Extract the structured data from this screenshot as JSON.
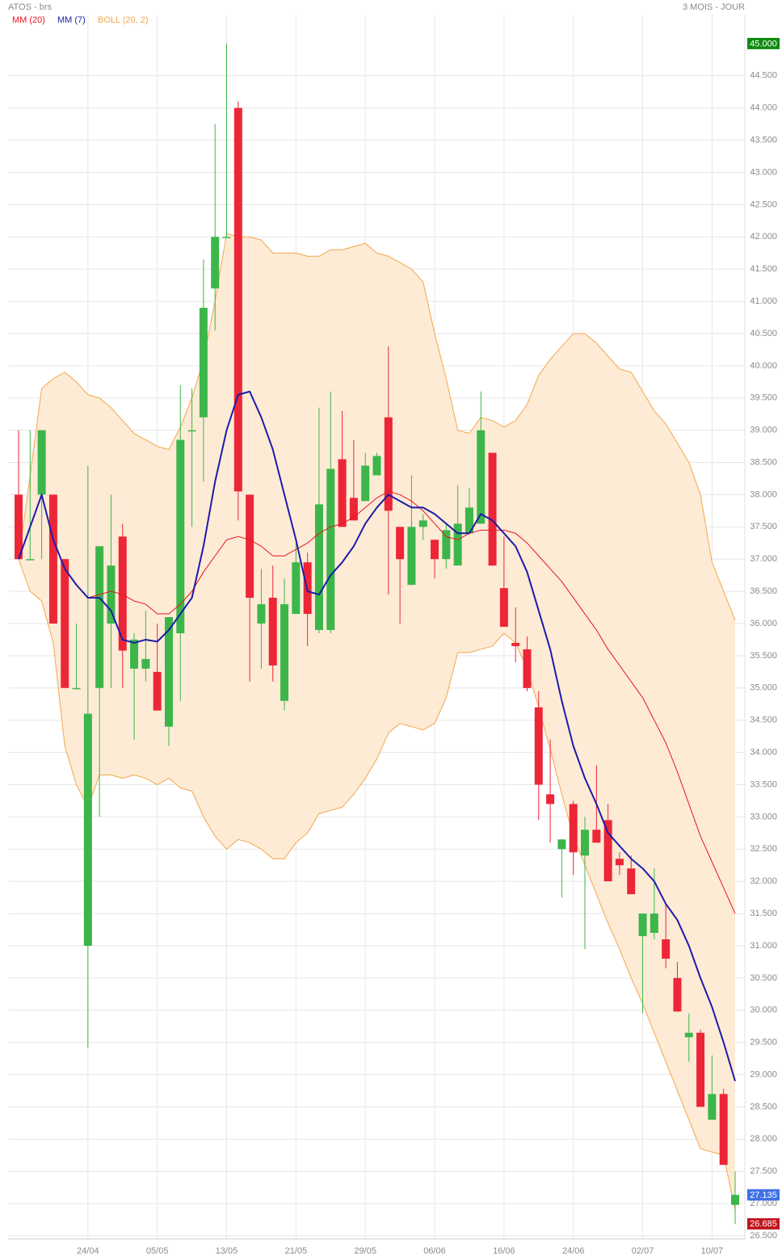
{
  "chart_data": {
    "type": "candlestick",
    "title": "ATOS - brs",
    "subtitle": "3 MOIS - JOUR",
    "categories": [
      null,
      null,
      null,
      null,
      null,
      null,
      "24/04",
      null,
      null,
      null,
      null,
      null,
      "05/05",
      null,
      null,
      null,
      null,
      null,
      "13/05",
      null,
      null,
      null,
      null,
      null,
      "21/05",
      null,
      null,
      null,
      null,
      null,
      "29/05",
      null,
      null,
      null,
      null,
      null,
      "06/06",
      null,
      null,
      null,
      null,
      null,
      "16/06",
      null,
      null,
      null,
      null,
      null,
      "24/06",
      null,
      null,
      null,
      null,
      null,
      "02/07",
      null,
      null,
      null,
      null,
      null,
      "10/07",
      null,
      null
    ],
    "open": [
      38.0,
      37.0,
      38.0,
      38.0,
      37.0,
      35.0,
      31.0,
      35.0,
      36.0,
      37.35,
      35.3,
      35.3,
      35.25,
      34.4,
      35.85,
      39.0,
      39.2,
      41.2,
      42.0,
      44.0,
      38.0,
      36.0,
      36.4,
      34.8,
      36.15,
      36.95,
      35.9,
      35.9,
      38.55,
      37.95,
      37.9,
      38.3,
      39.2,
      37.5,
      36.6,
      37.5,
      37.3,
      37.0,
      36.9,
      37.4,
      37.55,
      38.65,
      36.55,
      35.7,
      35.6,
      34.7,
      33.35,
      32.5,
      33.2,
      32.4,
      32.8,
      32.95,
      32.35,
      32.2,
      31.15,
      31.2,
      31.1,
      30.5,
      29.58,
      29.65,
      28.3,
      28.7,
      26.98
    ],
    "high": [
      39.0,
      39.0,
      39.0,
      38.0,
      37.0,
      36.0,
      38.45,
      37.2,
      38.0,
      37.55,
      35.85,
      36.2,
      36.0,
      36.1,
      39.7,
      39.65,
      41.65,
      43.75,
      45.0,
      44.1,
      38.0,
      36.85,
      36.9,
      36.7,
      37.25,
      37.1,
      39.35,
      39.6,
      39.3,
      38.85,
      38.65,
      38.65,
      40.3,
      37.5,
      38.3,
      37.7,
      37.3,
      37.55,
      38.15,
      38.1,
      39.6,
      38.65,
      37.35,
      36.25,
      35.8,
      34.95,
      34.2,
      32.65,
      33.25,
      33.0,
      33.8,
      33.2,
      32.45,
      32.4,
      31.5,
      32.2,
      31.65,
      30.75,
      29.95,
      29.7,
      29.3,
      28.78,
      27.5
    ],
    "low": [
      37.0,
      37.0,
      37.0,
      36.0,
      35.0,
      35.0,
      29.42,
      33.0,
      35.0,
      35.0,
      34.2,
      35.1,
      34.65,
      34.1,
      34.8,
      37.5,
      38.2,
      40.55,
      42.0,
      37.6,
      35.1,
      35.3,
      35.1,
      34.65,
      36.15,
      35.65,
      35.85,
      35.85,
      37.5,
      37.6,
      37.9,
      38.3,
      36.45,
      36.0,
      36.6,
      37.3,
      36.7,
      36.85,
      36.9,
      37.4,
      37.55,
      36.9,
      35.95,
      35.4,
      34.95,
      32.95,
      32.6,
      31.75,
      32.1,
      30.95,
      32.6,
      32.0,
      32.1,
      31.8,
      29.95,
      31.1,
      30.65,
      29.98,
      29.2,
      28.5,
      28.3,
      27.6,
      26.685
    ],
    "close": [
      37.0,
      37.0,
      39.0,
      36.0,
      35.0,
      35.0,
      34.6,
      37.2,
      36.9,
      35.58,
      35.75,
      35.45,
      34.65,
      36.1,
      38.85,
      39.0,
      40.9,
      42.0,
      42.0,
      38.05,
      36.4,
      36.3,
      35.35,
      36.3,
      36.95,
      36.15,
      37.85,
      38.4,
      37.5,
      37.6,
      38.45,
      38.6,
      37.75,
      37.0,
      37.5,
      37.6,
      37.0,
      37.45,
      37.55,
      37.8,
      39.0,
      36.9,
      35.95,
      35.65,
      35.0,
      33.5,
      33.2,
      32.65,
      32.45,
      32.8,
      32.6,
      32.0,
      32.25,
      31.8,
      31.5,
      31.5,
      30.8,
      29.98,
      29.65,
      28.5,
      28.7,
      27.6,
      27.135
    ],
    "up_color": "#3cb64a",
    "down_color": "#ec2637",
    "overlays": [
      {
        "name": "MM (20)",
        "color": "#e8141e",
        "width": 1,
        "values": [
          null,
          null,
          null,
          null,
          null,
          null,
          36.4,
          36.45,
          36.5,
          36.45,
          36.35,
          36.3,
          36.15,
          36.15,
          36.3,
          36.5,
          36.8,
          37.05,
          37.3,
          37.35,
          37.3,
          37.2,
          37.05,
          37.05,
          37.15,
          37.25,
          37.4,
          37.5,
          37.55,
          37.65,
          37.8,
          37.95,
          38.05,
          38.0,
          37.9,
          37.75,
          37.55,
          37.35,
          37.3,
          37.4,
          37.45,
          37.45,
          37.45,
          37.4,
          37.25,
          37.05,
          36.85,
          36.65,
          36.4,
          36.15,
          35.9,
          35.6,
          35.35,
          35.1,
          34.85,
          34.5,
          34.15,
          33.7,
          33.2,
          32.7,
          32.3,
          31.9,
          31.5
        ]
      },
      {
        "name": "MM (7)",
        "color": "#1c1ca8",
        "width": 2,
        "values": [
          37.0,
          37.5,
          38.0,
          37.3,
          36.85,
          36.6,
          36.4,
          36.4,
          36.2,
          35.75,
          35.7,
          35.75,
          35.72,
          35.9,
          36.15,
          36.4,
          37.2,
          38.2,
          39.0,
          39.55,
          39.6,
          39.2,
          38.7,
          38.0,
          37.3,
          36.5,
          36.45,
          36.75,
          36.95,
          37.2,
          37.55,
          37.8,
          38.0,
          37.9,
          37.8,
          37.8,
          37.7,
          37.55,
          37.4,
          37.4,
          37.7,
          37.6,
          37.4,
          37.2,
          36.8,
          36.2,
          35.6,
          34.8,
          34.1,
          33.6,
          33.2,
          32.75,
          32.55,
          32.35,
          32.2,
          32.0,
          31.65,
          31.4,
          31.0,
          30.5,
          30.05,
          29.5,
          28.9
        ]
      }
    ],
    "bands": {
      "name": "BOLL (20, 2)",
      "color": "#f4a64a",
      "fill": "#fdebd6",
      "upper": [
        37.0,
        38.3,
        39.65,
        39.8,
        39.9,
        39.75,
        39.55,
        39.5,
        39.35,
        39.15,
        38.95,
        38.85,
        38.75,
        38.7,
        39.05,
        39.5,
        40.1,
        41.0,
        42.05,
        42.0,
        42.0,
        41.95,
        41.75,
        41.75,
        41.75,
        41.7,
        41.7,
        41.8,
        41.8,
        41.85,
        41.9,
        41.75,
        41.7,
        41.6,
        41.5,
        41.3,
        40.5,
        39.8,
        39.0,
        38.95,
        39.2,
        39.15,
        39.05,
        39.15,
        39.4,
        39.85,
        40.1,
        40.3,
        40.5,
        40.5,
        40.35,
        40.15,
        39.95,
        39.9,
        39.6,
        39.3,
        39.1,
        38.8,
        38.5,
        38.0,
        36.95,
        36.5,
        36.05
      ],
      "lower": [
        37.0,
        36.5,
        36.35,
        35.7,
        34.1,
        33.5,
        33.15,
        33.65,
        33.65,
        33.6,
        33.65,
        33.6,
        33.5,
        33.6,
        33.45,
        33.4,
        33.0,
        32.7,
        32.5,
        32.65,
        32.6,
        32.5,
        32.35,
        32.35,
        32.6,
        32.75,
        33.05,
        33.1,
        33.15,
        33.35,
        33.6,
        33.9,
        34.3,
        34.45,
        34.4,
        34.35,
        34.45,
        34.85,
        35.55,
        35.55,
        35.6,
        35.65,
        35.85,
        35.7,
        35.3,
        34.7,
        34.05,
        33.35,
        32.7,
        32.25,
        31.8,
        31.35,
        30.95,
        30.5,
        30.1,
        29.65,
        29.2,
        28.75,
        28.3,
        27.85,
        27.8,
        27.75,
        26.9
      ]
    },
    "ylim": [
      26.45,
      45.4
    ],
    "yticks": [
      {
        "value": 26.5,
        "label": "26.500"
      },
      {
        "value": 27.0,
        "label": "27.000"
      },
      {
        "value": 27.5,
        "label": "27.500"
      },
      {
        "value": 28.0,
        "label": "28.000"
      },
      {
        "value": 28.5,
        "label": "28.500"
      },
      {
        "value": 29.0,
        "label": "29.000"
      },
      {
        "value": 29.5,
        "label": "29.500"
      },
      {
        "value": 30.0,
        "label": "30.000"
      },
      {
        "value": 30.5,
        "label": "30.500"
      },
      {
        "value": 31.0,
        "label": "31.000"
      },
      {
        "value": 31.5,
        "label": "31.500"
      },
      {
        "value": 32.0,
        "label": "32.000"
      },
      {
        "value": 32.5,
        "label": "32.500"
      },
      {
        "value": 33.0,
        "label": "33.000"
      },
      {
        "value": 33.5,
        "label": "33.500"
      },
      {
        "value": 34.0,
        "label": "34.000"
      },
      {
        "value": 34.5,
        "label": "34.500"
      },
      {
        "value": 35.0,
        "label": "35.000"
      },
      {
        "value": 35.5,
        "label": "35.500"
      },
      {
        "value": 36.0,
        "label": "36.000"
      },
      {
        "value": 36.5,
        "label": "36.500"
      },
      {
        "value": 37.0,
        "label": "37.000"
      },
      {
        "value": 37.5,
        "label": "37.500"
      },
      {
        "value": 38.0,
        "label": "38.000"
      },
      {
        "value": 38.5,
        "label": "38.500"
      },
      {
        "value": 39.0,
        "label": "39.000"
      },
      {
        "value": 39.5,
        "label": "39.500"
      },
      {
        "value": 40.0,
        "label": "40.000"
      },
      {
        "value": 40.5,
        "label": "40.500"
      },
      {
        "value": 41.0,
        "label": "41.000"
      },
      {
        "value": 41.5,
        "label": "41.500"
      },
      {
        "value": 42.0,
        "label": "42.000"
      },
      {
        "value": 42.5,
        "label": "42.500"
      },
      {
        "value": 43.0,
        "label": "43.000"
      },
      {
        "value": 43.5,
        "label": "43.500"
      },
      {
        "value": 44.0,
        "label": "44.000"
      },
      {
        "value": 44.5,
        "label": "44.500"
      }
    ],
    "price_labels": [
      {
        "value": 45.0,
        "label": "45.000",
        "color": "#0e8a10"
      },
      {
        "value": 27.135,
        "label": "27.135",
        "color": "#3f6fe6"
      },
      {
        "value": 26.685,
        "label": "26.685",
        "color": "#c0141c"
      }
    ],
    "grid": true
  }
}
